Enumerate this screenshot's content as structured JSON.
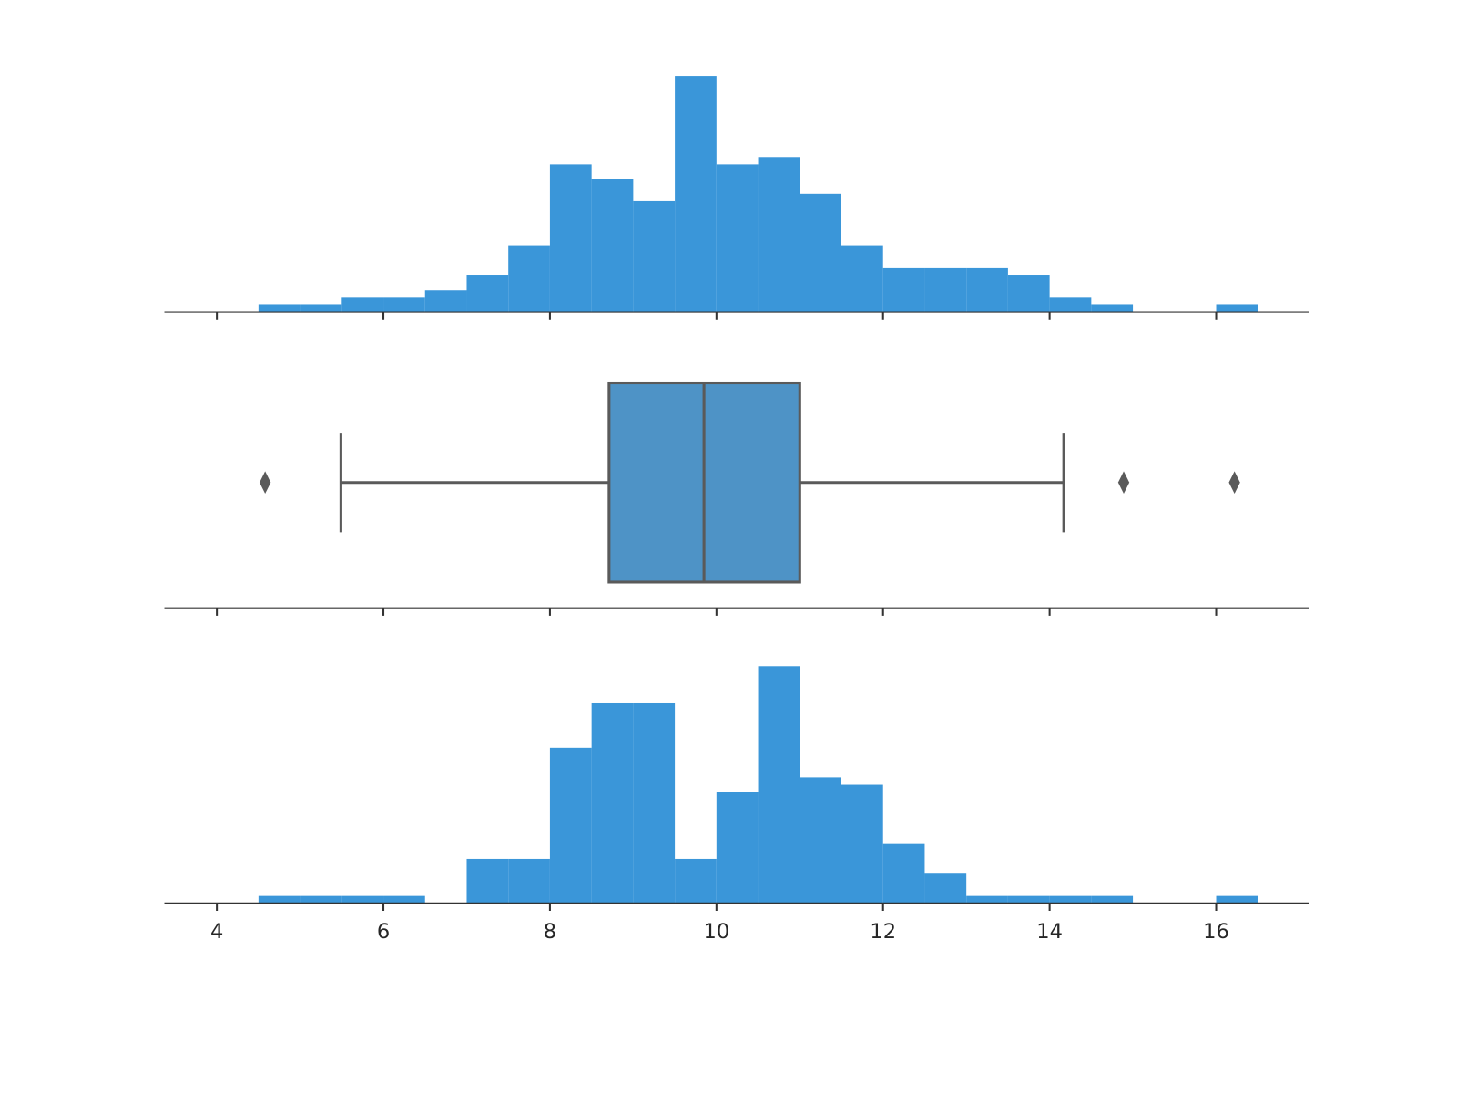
{
  "chart_data": [
    {
      "type": "histogram",
      "color": "#3a96d9",
      "bins": [
        4.5,
        5,
        5.5,
        6,
        6.5,
        7,
        7.5,
        8,
        8.5,
        9,
        9.5,
        10,
        10.5,
        11,
        11.5,
        12,
        12.5,
        13,
        13.5,
        14,
        14.5,
        15,
        15.5,
        16,
        16.5
      ],
      "values": [
        1,
        1,
        2,
        2,
        3,
        5,
        9,
        20,
        18,
        15,
        32,
        20,
        21,
        16,
        9,
        6,
        6,
        6,
        5,
        2,
        1,
        0,
        0,
        1
      ],
      "xlim": [
        3.37,
        17.12
      ],
      "xticks": [
        4,
        6,
        8,
        10,
        12,
        14,
        16
      ]
    },
    {
      "type": "box",
      "color": "#4e93c6",
      "edge_color": "#5a5a5a",
      "whislo": 5.49,
      "q1": 8.71,
      "median": 9.85,
      "q3": 11.0,
      "whishi": 14.17,
      "fliers": [
        4.58,
        14.89,
        16.22
      ],
      "xlim": [
        3.37,
        17.12
      ],
      "xticks": [
        4,
        6,
        8,
        10,
        12,
        14,
        16
      ]
    },
    {
      "type": "histogram",
      "color": "#3a96d9",
      "bins": [
        4.5,
        5,
        5.5,
        6,
        6.5,
        7,
        7.5,
        8,
        8.5,
        9,
        9.5,
        10,
        10.5,
        11,
        11.5,
        12,
        12.5,
        13,
        13.5,
        14,
        14.5,
        15,
        15.5,
        16,
        16.5
      ],
      "values": [
        1,
        1,
        1,
        1,
        0,
        6,
        6,
        21,
        27,
        27,
        6,
        15,
        32,
        17,
        16,
        8,
        4,
        1,
        1,
        1,
        1,
        0,
        0,
        1
      ],
      "xlim": [
        3.37,
        17.12
      ],
      "xticks": [
        4,
        6,
        8,
        10,
        12,
        14,
        16
      ]
    }
  ]
}
